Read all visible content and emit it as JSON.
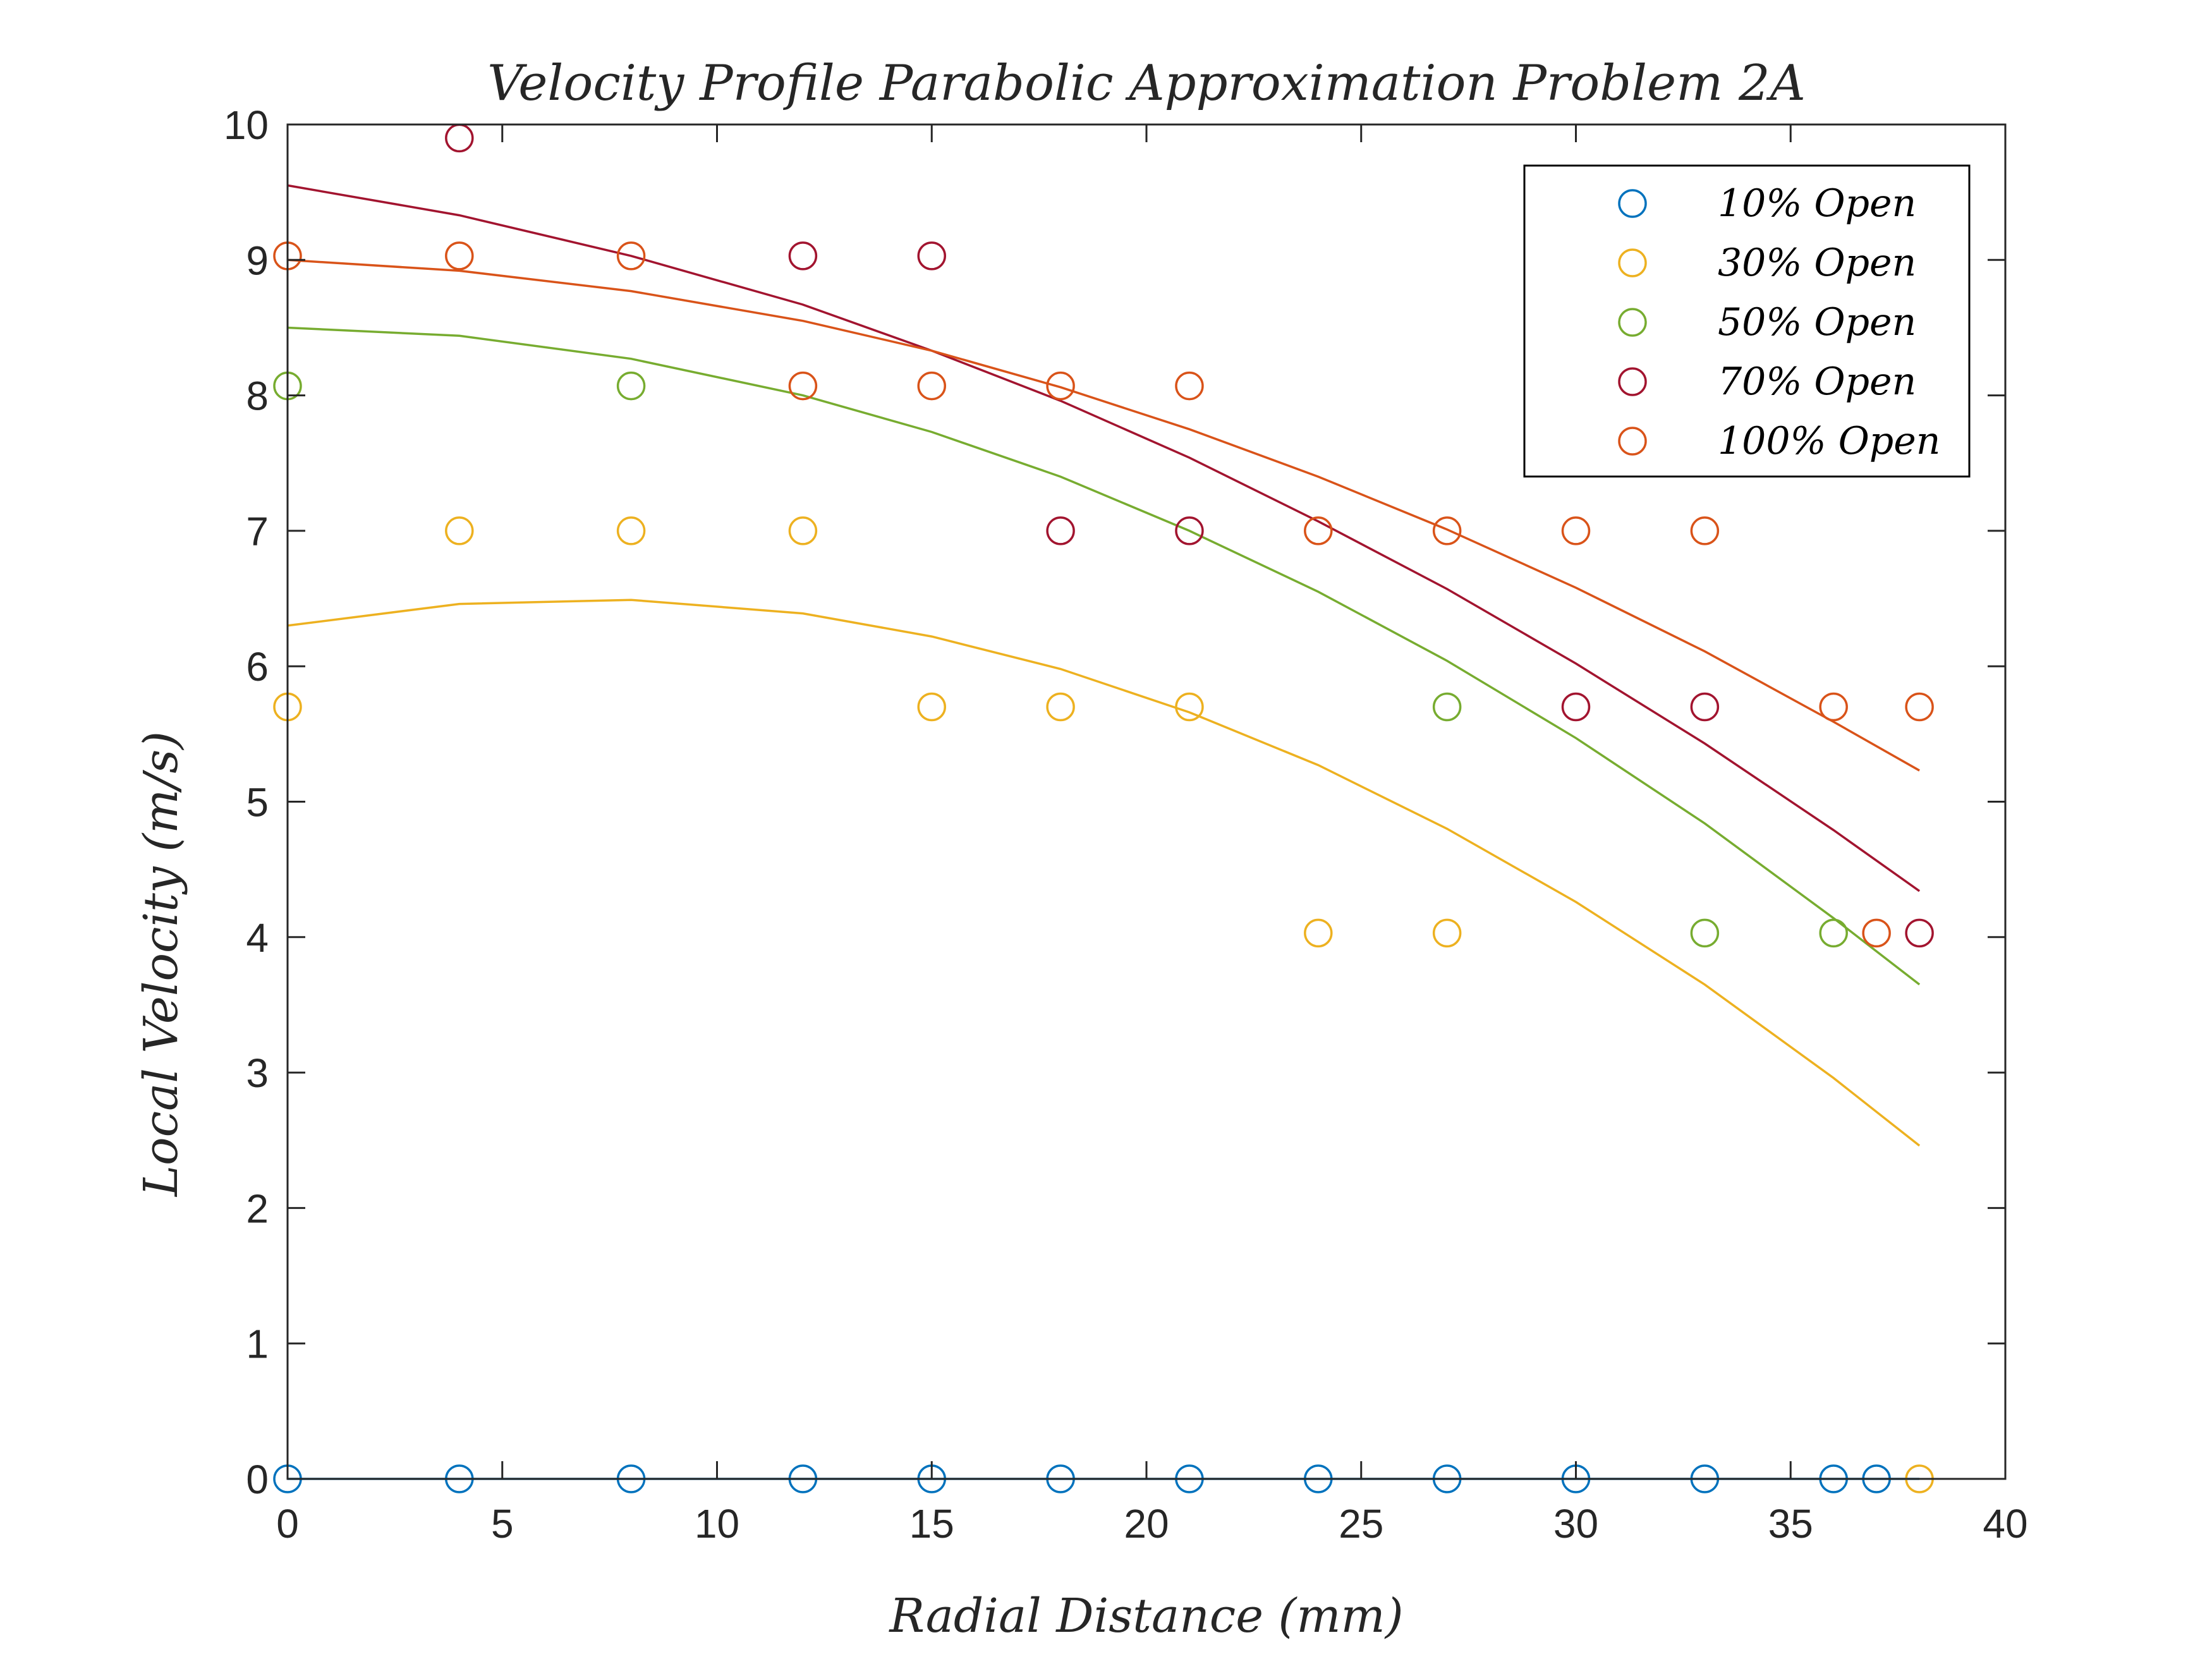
{
  "chart_data": {
    "type": "scatter",
    "title": "Velocity Profile Parabolic Approximation Problem 2A",
    "xlabel": "Radial Distance (mm)",
    "ylabel": "Local Velocity (m/s)",
    "xlim": [
      0,
      40
    ],
    "ylim": [
      0,
      10
    ],
    "xticks": [
      0,
      5,
      10,
      15,
      20,
      25,
      30,
      35,
      40
    ],
    "yticks": [
      0,
      1,
      2,
      3,
      4,
      5,
      6,
      7,
      8,
      9,
      10
    ],
    "xtick_labels": [
      "0",
      "5",
      "10",
      "15",
      "20",
      "25",
      "30",
      "35",
      "40"
    ],
    "ytick_labels": [
      "0",
      "1",
      "2",
      "3",
      "4",
      "5",
      "6",
      "7",
      "8",
      "9",
      "10"
    ],
    "grid": false,
    "legend_position": "top-right",
    "series": [
      {
        "name": "10% Open",
        "color": "#0072BD",
        "points": {
          "x": [
            0,
            4,
            8,
            12,
            15,
            18,
            21,
            24,
            27,
            30,
            33,
            36,
            37
          ],
          "y": [
            0,
            0,
            0,
            0,
            0,
            0,
            0,
            0,
            0,
            0,
            0,
            0,
            0
          ]
        },
        "fit": {
          "x": [
            0,
            4,
            8,
            12,
            15,
            18,
            21,
            24,
            27,
            30,
            33,
            36,
            38
          ],
          "y": [
            0,
            0,
            0,
            0,
            0,
            0,
            0,
            0,
            0,
            0,
            0,
            0,
            0
          ]
        }
      },
      {
        "name": "30% Open",
        "color": "#EDB120",
        "points": {
          "x": [
            0,
            4,
            8,
            12,
            15,
            18,
            21,
            24,
            27,
            38
          ],
          "y": [
            5.7,
            7.0,
            7.0,
            7.0,
            5.7,
            5.7,
            5.7,
            4.03,
            4.03,
            0
          ]
        },
        "fit": {
          "x": [
            0,
            4,
            8,
            12,
            15,
            18,
            21,
            24,
            27,
            30,
            33,
            36,
            38
          ],
          "y": [
            6.3,
            6.46,
            6.49,
            6.39,
            6.22,
            5.98,
            5.66,
            5.27,
            4.8,
            4.26,
            3.65,
            2.96,
            2.46
          ]
        }
      },
      {
        "name": "50% Open",
        "color": "#77AC30",
        "points": {
          "x": [
            0,
            8,
            27,
            33,
            36
          ],
          "y": [
            8.07,
            8.07,
            5.7,
            4.03,
            4.03
          ]
        },
        "fit": {
          "x": [
            0,
            4,
            8,
            12,
            15,
            18,
            21,
            24,
            27,
            30,
            33,
            36,
            38
          ],
          "y": [
            8.5,
            8.44,
            8.27,
            8.0,
            7.73,
            7.4,
            7.0,
            6.55,
            6.04,
            5.47,
            4.84,
            4.14,
            3.65
          ]
        }
      },
      {
        "name": "70% Open",
        "color": "#A2142F",
        "points": {
          "x": [
            4,
            12,
            15,
            18,
            21,
            30,
            33,
            38
          ],
          "y": [
            9.9,
            9.03,
            9.03,
            7.0,
            7.0,
            5.7,
            5.7,
            4.03
          ]
        },
        "fit": {
          "x": [
            0,
            4,
            8,
            12,
            15,
            18,
            21,
            24,
            27,
            30,
            33,
            36,
            38
          ],
          "y": [
            9.55,
            9.33,
            9.03,
            8.67,
            8.33,
            7.96,
            7.54,
            7.07,
            6.57,
            6.02,
            5.43,
            4.79,
            4.34
          ]
        }
      },
      {
        "name": "100% Open",
        "color": "#D95319",
        "points": {
          "x": [
            0,
            4,
            8,
            12,
            15,
            18,
            21,
            24,
            27,
            30,
            33,
            36,
            37,
            38
          ],
          "y": [
            9.03,
            9.03,
            9.03,
            8.07,
            8.07,
            8.07,
            8.07,
            7.0,
            7.0,
            7.0,
            7.0,
            5.7,
            4.03,
            5.7
          ]
        },
        "fit": {
          "x": [
            0,
            4,
            8,
            12,
            15,
            18,
            21,
            24,
            27,
            30,
            33,
            36,
            38
          ],
          "y": [
            9.0,
            8.92,
            8.77,
            8.55,
            8.33,
            8.06,
            7.75,
            7.4,
            7.01,
            6.58,
            6.11,
            5.59,
            5.23
          ]
        }
      }
    ]
  }
}
